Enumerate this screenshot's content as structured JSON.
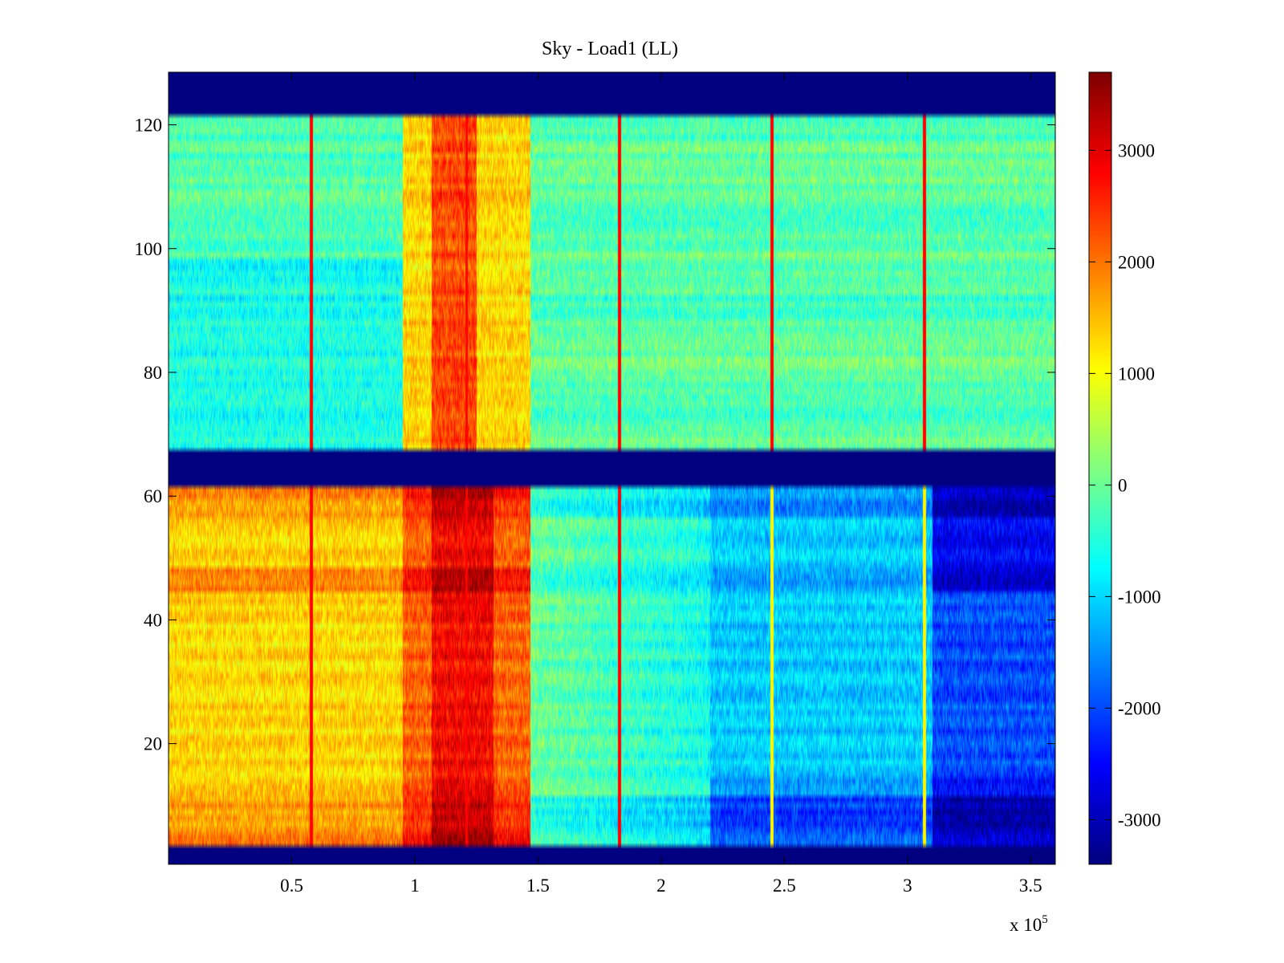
{
  "chart_data": {
    "type": "heatmap",
    "title": "Sky - Load1 (LL)",
    "xlabel": "",
    "ylabel": "",
    "x_scale_label": {
      "base": "x 10",
      "exponent": "5"
    },
    "xlim": [
      0,
      3.6
    ],
    "ylim": [
      0.5,
      128.5
    ],
    "x_ticks": [
      0.5,
      1,
      1.5,
      2,
      2.5,
      3,
      3.5
    ],
    "x_tick_labels": [
      "0.5",
      "1",
      "1.5",
      "2",
      "2.5",
      "3",
      "3.5"
    ],
    "y_ticks": [
      20,
      40,
      60,
      80,
      100,
      120
    ],
    "y_tick_labels": [
      "20",
      "40",
      "60",
      "80",
      "100",
      "120"
    ],
    "colorbar": {
      "colormap": "jet",
      "range": [
        -3400,
        3700
      ],
      "ticks": [
        -3000,
        -2000,
        -1000,
        0,
        1000,
        2000,
        3000
      ],
      "tick_labels": [
        "-3000",
        "-2000",
        "-1000",
        "0",
        "1000",
        "2000",
        "3000"
      ]
    },
    "masked_row_ranges": [
      [
        0.5,
        3.5
      ],
      [
        61.5,
        67.5
      ],
      [
        121.5,
        128.5
      ]
    ],
    "spectral_lines_x": [
      0.58,
      1.21,
      1.83,
      2.45,
      3.07
    ],
    "regions": [
      {
        "name": "upper band",
        "rows": [
          67.5,
          121.5
        ],
        "note": "mostly near 0 (cyan/green) with warm region at x 0.95-1.45"
      },
      {
        "name": "lower band",
        "rows": [
          3.5,
          61.5
        ],
        "note": "warm (+1000 to +3000) for x < 1.47; cool (-1000 to -3000) for x > 2.2"
      }
    ],
    "grid": false
  },
  "colors": {
    "masked": "#00008f",
    "axis": "#000000",
    "background": "#ffffff"
  }
}
